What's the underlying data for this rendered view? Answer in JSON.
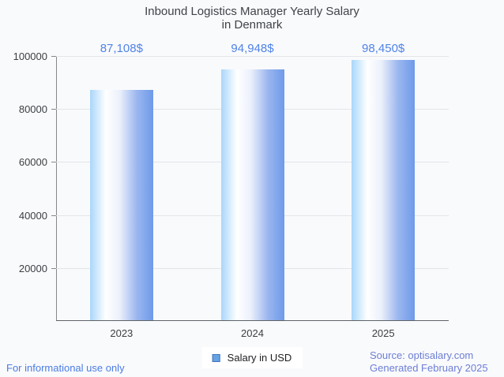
{
  "page": {
    "background": "#F9FAFC"
  },
  "chart_data": {
    "type": "bar",
    "title": "Inbound Logistics Manager Yearly Salary in Denmark",
    "title_lines": [
      "Inbound Logistics Manager Yearly Salary",
      "in Denmark"
    ],
    "categories": [
      "2023",
      "2024",
      "2025"
    ],
    "series": [
      {
        "name": "Salary in USD",
        "values": [
          87108,
          94948,
          98450
        ]
      }
    ],
    "value_labels": [
      "87,108$",
      "94,948$",
      "98,450$"
    ],
    "ylim": [
      0,
      100000
    ],
    "yticks": [
      20000,
      40000,
      60000,
      80000,
      100000
    ],
    "ytick_labels": [
      "20000",
      "40000",
      "60000",
      "80000",
      "100000"
    ],
    "grid": true,
    "legend_position": "bottom",
    "colors": {
      "bar_gradient_left": "#A9D6FB",
      "bar_gradient_mid": "#FFFFFF",
      "bar_gradient_right": "#6E9AE9",
      "value_label": "#5083E8",
      "legend_swatch_fill": "#67A2E4",
      "legend_swatch_border": "#4176B8",
      "gridline": "#E4E5E8",
      "baseline": "#5F6368"
    }
  },
  "legend": {
    "label": "Salary in USD"
  },
  "footer": {
    "left": "For informational use only",
    "source": "Source: optisalary.com",
    "generated": "Generated February 2025"
  }
}
